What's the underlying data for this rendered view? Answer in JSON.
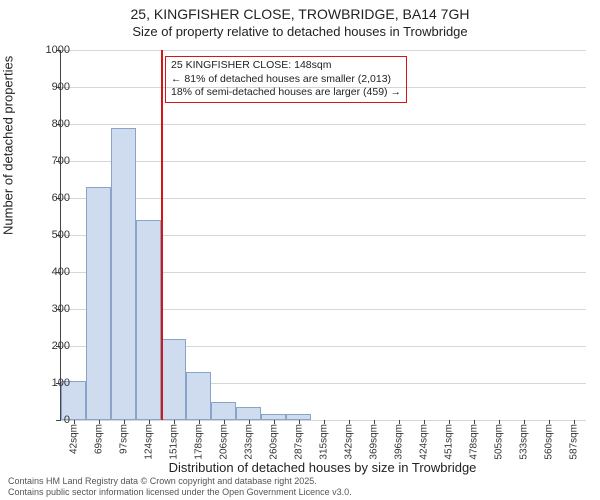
{
  "title_main": "25, KINGFISHER CLOSE, TROWBRIDGE, BA14 7GH",
  "title_sub": "Size of property relative to detached houses in Trowbridge",
  "ylabel": "Number of detached properties",
  "xlabel": "Distribution of detached houses by size in Trowbridge",
  "chart": {
    "type": "histogram",
    "ylim": [
      0,
      1000
    ],
    "ytick_step": 100,
    "grid_color": "#d6d6d6",
    "background_color": "#ffffff",
    "bar_fill": "#cfdcef",
    "bar_border": "#8aa3c9",
    "label_fontsize": 13,
    "tick_fontsize": 11,
    "categories": [
      "42sqm",
      "69sqm",
      "97sqm",
      "124sqm",
      "151sqm",
      "178sqm",
      "206sqm",
      "233sqm",
      "260sqm",
      "287sqm",
      "315sqm",
      "342sqm",
      "369sqm",
      "396sqm",
      "424sqm",
      "451sqm",
      "478sqm",
      "505sqm",
      "533sqm",
      "560sqm",
      "587sqm"
    ],
    "values": [
      105,
      630,
      790,
      540,
      220,
      130,
      50,
      35,
      15,
      15,
      0,
      0,
      0,
      0,
      0,
      0,
      0,
      0,
      0,
      0,
      0
    ]
  },
  "marker": {
    "color": "#d31717",
    "category_index": 4
  },
  "annotation": {
    "line1": "25 KINGFISHER CLOSE: 148sqm",
    "line2": "← 81% of detached houses are smaller (2,013)",
    "line3": "18% of semi-detached houses are larger (459) →",
    "border_color": "#d31717"
  },
  "footer": {
    "line1": "Contains HM Land Registry data © Crown copyright and database right 2025.",
    "line2": "Contains public sector information licensed under the Open Government Licence v3.0."
  }
}
